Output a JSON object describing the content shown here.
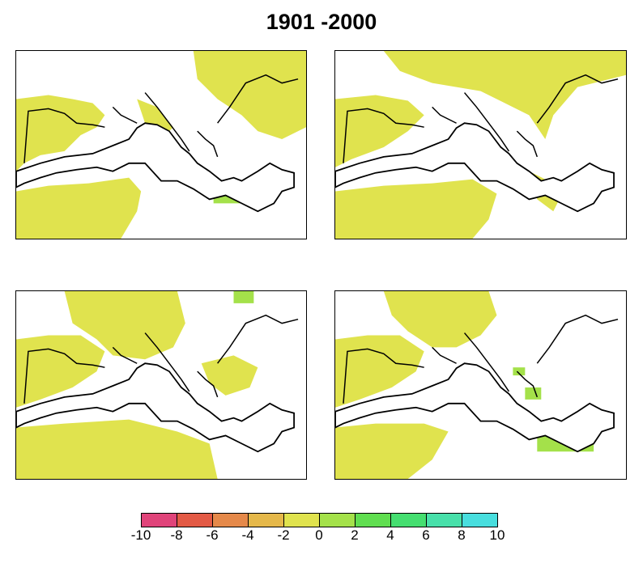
{
  "title": "1901 -2000",
  "colors": {
    "background": "#ffffff",
    "coast": "#000000",
    "near_zero": "#e0e34e",
    "positive_small": "#a4e14a"
  },
  "colorbar": {
    "ticks": [
      "-10",
      "-8",
      "-6",
      "-4",
      "-2",
      "0",
      "2",
      "4",
      "6",
      "8",
      "10"
    ],
    "colors": [
      "#e0447a",
      "#e35a45",
      "#e5894a",
      "#e5b84a",
      "#e0e34e",
      "#a4e14a",
      "#60de50",
      "#45de70",
      "#48e0aa",
      "#48dede"
    ]
  },
  "panels": [
    {
      "id": "top-left"
    },
    {
      "id": "top-right"
    },
    {
      "id": "bottom-left"
    },
    {
      "id": "bottom-right"
    }
  ]
}
